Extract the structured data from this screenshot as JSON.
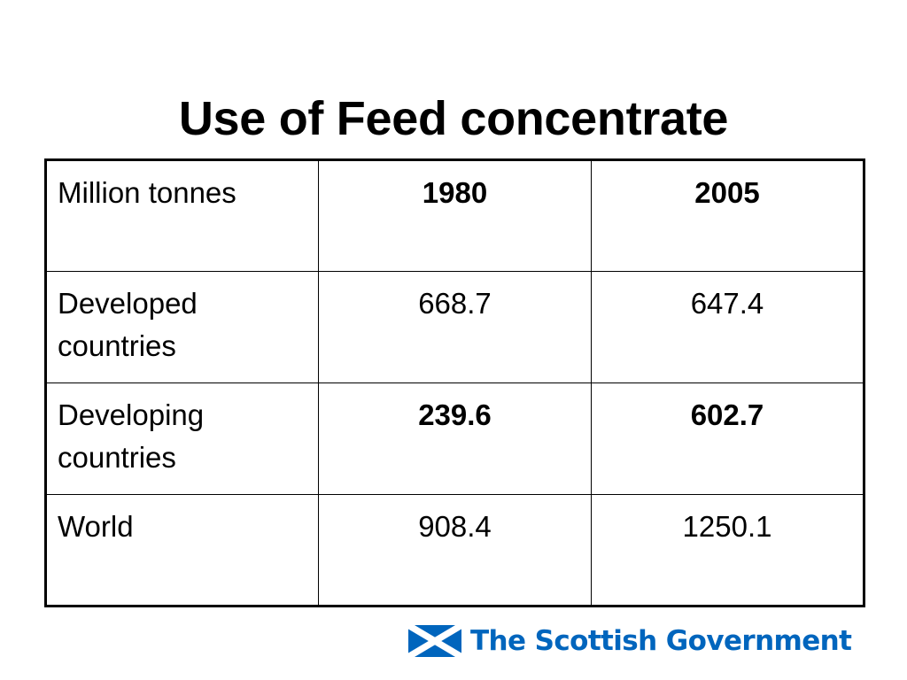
{
  "slide": {
    "title": "Use of Feed concentrate"
  },
  "table": {
    "header": {
      "label": "Million tonnes",
      "col1": "1980",
      "col2": "2005"
    },
    "rows": [
      {
        "label": "Developed countries",
        "v1980": "668.7",
        "v2005": "647.4"
      },
      {
        "label": "Developing countries",
        "v1980": "239.6",
        "v2005": "602.7"
      },
      {
        "label": "World",
        "v1980": "908.4",
        "v2005": "1250.1"
      }
    ]
  },
  "brand": {
    "name": "The Scottish Government",
    "logo_icon": "saltire-flag-icon",
    "color": "#0065bd"
  }
}
